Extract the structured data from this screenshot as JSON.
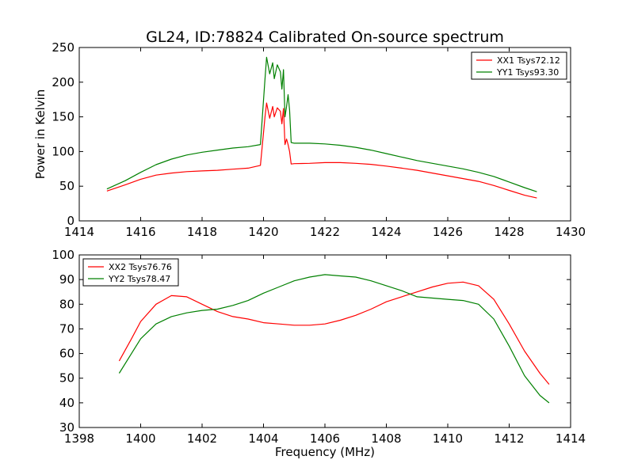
{
  "title": "GL24, ID:78824 Calibrated On-source spectrum",
  "chart_data": [
    {
      "type": "line",
      "ylabel": "Power in Kelvin",
      "xlabel": "",
      "xlim": [
        1414,
        1430
      ],
      "ylim": [
        0,
        250
      ],
      "xticks": [
        1414,
        1416,
        1418,
        1420,
        1422,
        1424,
        1426,
        1428,
        1430
      ],
      "yticks": [
        0,
        50,
        100,
        150,
        200,
        250
      ],
      "legend_position": "top-right",
      "series": [
        {
          "name": "XX1 Tsys72.12",
          "color": "#ff0000",
          "x": [
            1414.9,
            1415.5,
            1416.0,
            1416.5,
            1417.0,
            1417.5,
            1418.0,
            1418.5,
            1419.0,
            1419.5,
            1419.9,
            1420.05,
            1420.1,
            1420.2,
            1420.3,
            1420.35,
            1420.45,
            1420.55,
            1420.6,
            1420.65,
            1420.7,
            1420.75,
            1420.8,
            1420.85,
            1420.9,
            1421.0,
            1421.5,
            1422.0,
            1422.5,
            1423.0,
            1423.5,
            1424.0,
            1424.5,
            1425.0,
            1425.5,
            1426.0,
            1426.5,
            1427.0,
            1427.5,
            1428.0,
            1428.5,
            1428.9
          ],
          "values": [
            43,
            52,
            60,
            66,
            69,
            71,
            72,
            73,
            74.5,
            76,
            80,
            150,
            170,
            148,
            165,
            150,
            163,
            158,
            140,
            162,
            110,
            118,
            110,
            100,
            82,
            82.5,
            83,
            84,
            84,
            83,
            81.5,
            79,
            76,
            73,
            69,
            65,
            61,
            57,
            51,
            44,
            37,
            33
          ]
        },
        {
          "name": "YY1 Tsys93.30",
          "color": "#008000",
          "x": [
            1414.9,
            1415.5,
            1416.0,
            1416.5,
            1417.0,
            1417.5,
            1418.0,
            1418.5,
            1419.0,
            1419.5,
            1419.9,
            1420.05,
            1420.1,
            1420.2,
            1420.3,
            1420.35,
            1420.45,
            1420.55,
            1420.6,
            1420.65,
            1420.7,
            1420.75,
            1420.8,
            1420.85,
            1420.9,
            1421.0,
            1421.5,
            1422.0,
            1422.5,
            1423.0,
            1423.5,
            1424.0,
            1424.5,
            1425.0,
            1425.5,
            1426.0,
            1426.5,
            1427.0,
            1427.5,
            1428.0,
            1428.5,
            1428.9
          ],
          "values": [
            46,
            58,
            70,
            81,
            89,
            95,
            99,
            102,
            105,
            107,
            110,
            205,
            236,
            212,
            228,
            205,
            225,
            215,
            190,
            218,
            150,
            165,
            182,
            160,
            113,
            112,
            112,
            111,
            109,
            106,
            102,
            97,
            92,
            87,
            83,
            79,
            75,
            70,
            64,
            56,
            48,
            42
          ]
        }
      ]
    },
    {
      "type": "line",
      "ylabel": "",
      "xlabel": "Frequency (MHz)",
      "xlim": [
        1398,
        1414
      ],
      "ylim": [
        30,
        100
      ],
      "xticks": [
        1398,
        1400,
        1402,
        1404,
        1406,
        1408,
        1410,
        1412,
        1414
      ],
      "yticks": [
        30,
        40,
        50,
        60,
        70,
        80,
        90,
        100
      ],
      "legend_position": "top-left",
      "series": [
        {
          "name": "XX2 Tsys76.76",
          "color": "#ff0000",
          "x": [
            1399.3,
            1399.7,
            1400.0,
            1400.5,
            1401.0,
            1401.5,
            1402.0,
            1402.5,
            1403.0,
            1403.5,
            1404.0,
            1404.5,
            1405.0,
            1405.5,
            1406.0,
            1406.5,
            1407.0,
            1407.5,
            1408.0,
            1408.5,
            1409.0,
            1409.5,
            1410.0,
            1410.5,
            1411.0,
            1411.5,
            1412.0,
            1412.5,
            1413.0,
            1413.3
          ],
          "values": [
            57,
            66,
            73,
            80,
            83.5,
            83,
            80,
            77,
            75,
            74,
            72.5,
            72,
            71.5,
            71.5,
            72,
            73.5,
            75.5,
            78,
            81,
            83,
            85,
            87,
            88.5,
            89,
            87.5,
            82,
            72,
            61,
            52,
            47.5
          ]
        },
        {
          "name": "YY2 Tsys78.47",
          "color": "#008000",
          "x": [
            1399.3,
            1399.7,
            1400.0,
            1400.5,
            1401.0,
            1401.5,
            1402.0,
            1402.5,
            1403.0,
            1403.5,
            1404.0,
            1404.5,
            1405.0,
            1405.5,
            1406.0,
            1406.5,
            1407.0,
            1407.5,
            1408.0,
            1408.5,
            1409.0,
            1409.5,
            1410.0,
            1410.5,
            1411.0,
            1411.5,
            1412.0,
            1412.5,
            1413.0,
            1413.3
          ],
          "values": [
            52,
            60,
            66,
            72,
            75,
            76.5,
            77.5,
            78,
            79.5,
            81.5,
            84.5,
            87,
            89.5,
            91,
            92,
            91.5,
            91,
            89.5,
            87.5,
            85.5,
            83,
            82.5,
            82,
            81.5,
            80,
            74,
            63,
            51,
            43,
            40
          ]
        }
      ]
    }
  ]
}
